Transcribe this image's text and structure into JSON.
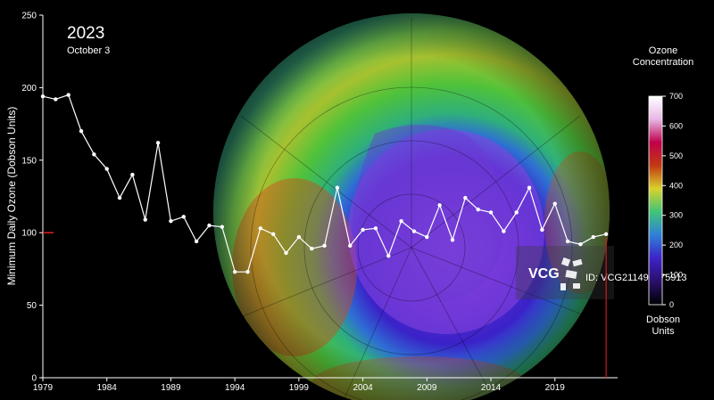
{
  "header": {
    "year": "2023",
    "date": "October 3"
  },
  "colorbar": {
    "title_line1": "Ozone",
    "title_line2": "Concentration",
    "units_line1": "Dobson",
    "units_line2": "Units",
    "ticks": [
      0,
      100,
      200,
      300,
      400,
      500,
      600,
      700
    ],
    "range": [
      0,
      700
    ],
    "stops": [
      "#000000",
      "#2a0f6b",
      "#3c23c8",
      "#2f7fd8",
      "#3fc47a",
      "#d9d22c",
      "#c23a12",
      "#c0004a",
      "#e7b7e6",
      "#ffffff"
    ]
  },
  "watermark": {
    "logo": "VCG",
    "id_text": "ID: VCG211498375913"
  },
  "chart_data": {
    "type": "line",
    "ylabel": "Minimum Daily Ozone (Dobson Units)",
    "xlabel": "",
    "title": "",
    "xlim": [
      1979,
      2023
    ],
    "ylim": [
      0,
      250
    ],
    "xticks": [
      1979,
      1984,
      1989,
      1994,
      1999,
      2004,
      2009,
      2014,
      2019
    ],
    "yticks": [
      0,
      50,
      100,
      150,
      200,
      250
    ],
    "grid": false,
    "reference_y": 100,
    "current_year": 2023,
    "series": [
      {
        "color": "#ffffff",
        "points": [
          [
            1979,
            194
          ],
          [
            1980,
            192
          ],
          [
            1981,
            195
          ],
          [
            1982,
            170
          ],
          [
            1983,
            154
          ],
          [
            1984,
            144
          ],
          [
            1985,
            124
          ],
          [
            1986,
            140
          ],
          [
            1987,
            109
          ],
          [
            1988,
            162
          ],
          [
            1989,
            108
          ],
          [
            1990,
            111
          ],
          [
            1991,
            94
          ],
          [
            1992,
            105
          ],
          [
            1993,
            104
          ],
          [
            1994,
            73
          ],
          [
            1995,
            73
          ],
          [
            1996,
            103
          ],
          [
            1997,
            99
          ],
          [
            1998,
            86
          ],
          [
            1999,
            97
          ],
          [
            2000,
            89
          ],
          [
            2001,
            91
          ],
          [
            2002,
            131
          ],
          [
            2003,
            91
          ],
          [
            2004,
            102
          ],
          [
            2005,
            103
          ],
          [
            2006,
            84
          ],
          [
            2007,
            108
          ],
          [
            2008,
            101
          ],
          [
            2009,
            97
          ],
          [
            2010,
            119
          ],
          [
            2011,
            95
          ],
          [
            2012,
            124
          ],
          [
            2013,
            116
          ],
          [
            2014,
            114
          ],
          [
            2015,
            101
          ],
          [
            2016,
            114
          ],
          [
            2017,
            131
          ],
          [
            2018,
            102
          ],
          [
            2019,
            120
          ],
          [
            2020,
            94
          ],
          [
            2021,
            92
          ],
          [
            2022,
            97
          ],
          [
            2023,
            99
          ]
        ]
      }
    ]
  }
}
